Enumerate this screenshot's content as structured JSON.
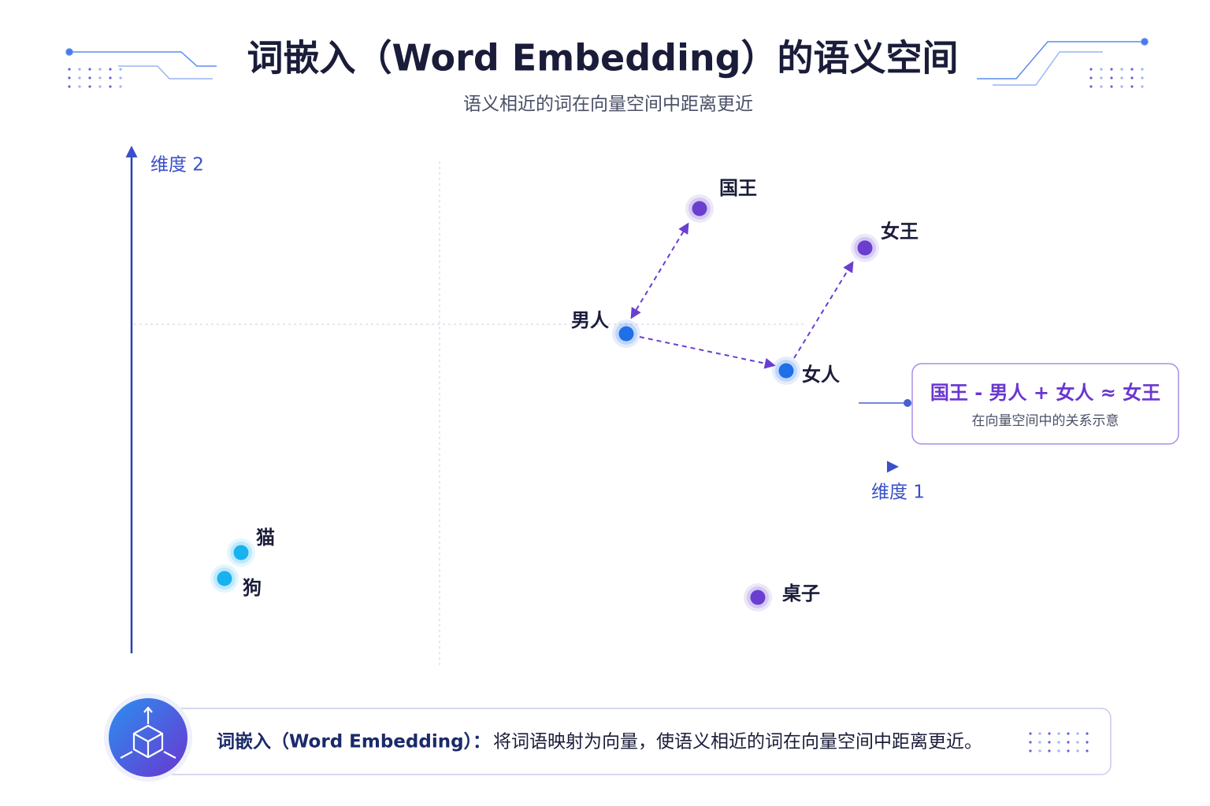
{
  "header": {
    "title": "词嵌入（Word Embedding）的语义空间",
    "subtitle": "语义相近的词在向量空间中距离更近"
  },
  "axes": {
    "y_label": "维度 2",
    "x_label": "维度 1"
  },
  "nodes": [
    {
      "label": "国王"
    },
    {
      "label": "女王"
    },
    {
      "label": "男人"
    },
    {
      "label": "女人"
    },
    {
      "label": "猫"
    },
    {
      "label": "狗"
    },
    {
      "label": "桌子"
    }
  ],
  "callout": {
    "formula": "国王 - 男人 + 女人 ≈ 女王",
    "note": "在向量空间中的关系示意"
  },
  "footer": {
    "term": "词嵌入（Word Embedding）：",
    "definition": "将词语映射为向量，使语义相近的词在向量空间中距离更近。"
  }
}
